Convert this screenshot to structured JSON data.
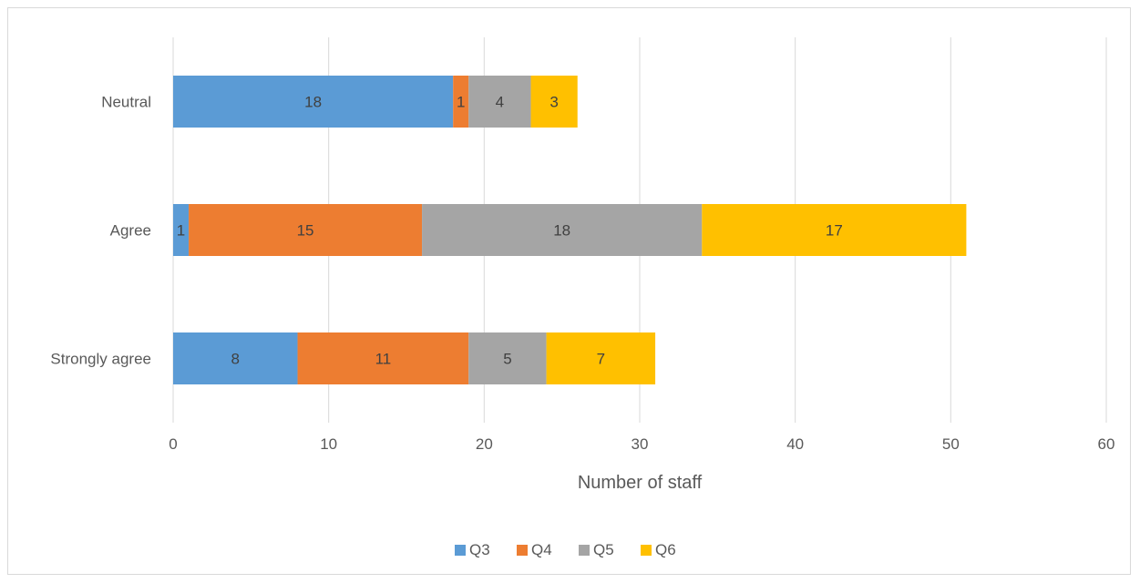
{
  "chart_data": {
    "type": "bar",
    "orientation": "horizontal",
    "stacked": true,
    "categories": [
      "Strongly agree",
      "Agree",
      "Neutral"
    ],
    "series": [
      {
        "name": "Q3",
        "color": "#5b9bd5",
        "values": [
          8,
          1,
          18
        ]
      },
      {
        "name": "Q4",
        "color": "#ed7d31",
        "values": [
          11,
          15,
          1
        ]
      },
      {
        "name": "Q5",
        "color": "#a5a5a5",
        "values": [
          5,
          18,
          4
        ]
      },
      {
        "name": "Q6",
        "color": "#ffc000",
        "values": [
          7,
          17,
          3
        ]
      }
    ],
    "xlabel": "Number of staff",
    "xlim": [
      0,
      60
    ],
    "xticks": [
      0,
      10,
      20,
      30,
      40,
      50,
      60
    ],
    "grid": "vertical",
    "legend": "bottom",
    "data_labels": true
  }
}
